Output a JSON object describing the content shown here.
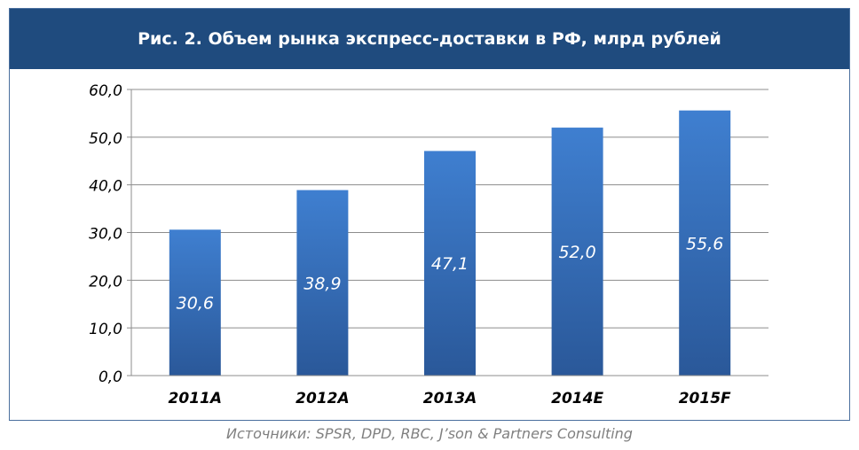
{
  "chart_data": {
    "type": "bar",
    "title": "Рис. 2. Объем рынка экспресс-доставки в РФ, млрд рублей",
    "categories": [
      "2011A",
      "2012A",
      "2013A",
      "2014E",
      "2015F"
    ],
    "values": [
      30.6,
      38.9,
      47.1,
      52.0,
      55.6
    ],
    "value_labels": [
      "30,6",
      "38,9",
      "47,1",
      "52,0",
      "55,6"
    ],
    "ylim": [
      0,
      60
    ],
    "yticks": [
      0,
      10,
      20,
      30,
      40,
      50,
      60
    ],
    "ytick_labels": [
      "0,0",
      "10,0",
      "20,0",
      "30,0",
      "40,0",
      "50,0",
      "60,0"
    ],
    "grid": true,
    "bar_color_top": "#3f7fd0",
    "bar_color_bottom": "#2a5899"
  },
  "source": "Источники: SPSR, DPD, RBC, J’son & Partners Consulting"
}
